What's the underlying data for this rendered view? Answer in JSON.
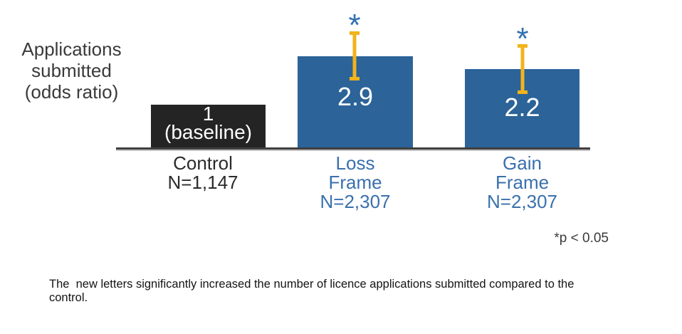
{
  "colors": {
    "bar_blue": "#2c6398",
    "bar_black": "#242424",
    "gold": "#f2b31b",
    "label_blue": "#3a70ad",
    "asterisk_blue": "#3270af",
    "text_dark": "#3a3a3a",
    "text_black": "#2b2b2b",
    "caption_black": "#141414",
    "axis": "#3f3f3f"
  },
  "chart_data": {
    "type": "bar",
    "title": "Applications submitted (odds ratio)",
    "categories": [
      "Control N=1,147",
      "Loss Frame N=2,307",
      "Gain Frame N=2,307"
    ],
    "values": [
      1,
      2.9,
      2.2
    ],
    "bar_labels": [
      "1 (baseline)",
      "2.9",
      "2.2"
    ],
    "sample_sizes": [
      "N=1,147",
      "N=2,307",
      "N=2,307"
    ],
    "significant": [
      false,
      true,
      true
    ],
    "significance_note": "*p < 0.05",
    "error_bars_on": [
      false,
      true,
      true
    ],
    "bar_colors": [
      "#242424",
      "#2c6398",
      "#2c6398"
    ],
    "error_bar_color": "#f2b31b",
    "ylabel": "Applications submitted (odds ratio)",
    "yaxis_ticks_visible": false,
    "grid": false,
    "legend": false
  },
  "figure": {
    "y_axis_title": {
      "line1": "Applications",
      "line2": "submitted",
      "line3": "(odds ratio)"
    },
    "bars": [
      {
        "value_line1": "1",
        "value_line2": "(baseline)",
        "cat_line1": "Control",
        "cat_line2": "N=1,147"
      },
      {
        "value_line1": "2.9",
        "asterisk": "*",
        "cat_line1": "Loss",
        "cat_line2": "Frame",
        "cat_line3": "N=2,307"
      },
      {
        "value_line1": "2.2",
        "asterisk": "*",
        "cat_line1": "Gain",
        "cat_line2": "Frame",
        "cat_line3": "N=2,307"
      }
    ],
    "sig_note": "*p < 0.05",
    "caption": {
      "line1": "The  new letters significantly increased the number of licence applications submitted compared to the",
      "line2": "control."
    }
  }
}
